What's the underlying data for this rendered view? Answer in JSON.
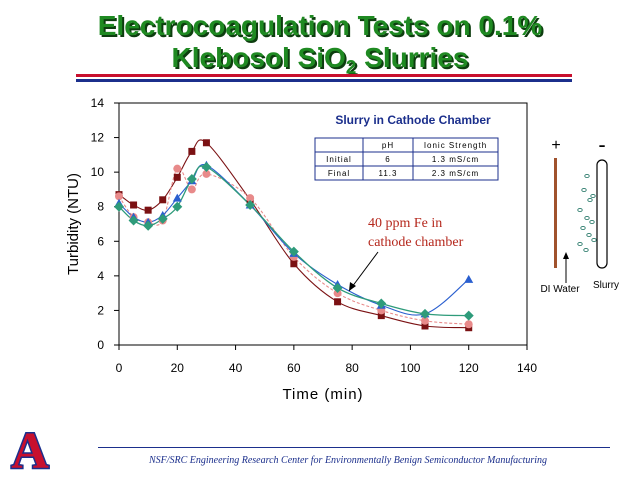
{
  "slide": {
    "title_line1": "Electrocoagulation Tests on 0.1%",
    "title_line2_pre": "Klebosol SiO",
    "title_line2_sub": "2",
    "title_line2_post": " Slurries",
    "footer": "NSF/SRC Engineering Research Center for Environmentally Benign Semiconductor Manufacturing",
    "logo_letter": "A",
    "colors": {
      "title": "#1f8a22",
      "rule_red": "#c8102e",
      "rule_blue": "#1b2f8c",
      "logo_red": "#c8102e",
      "logo_blue": "#1b2f8c"
    }
  },
  "chart_data": {
    "type": "line",
    "xlabel": "Time (min)",
    "ylabel": "Turbidity (NTU)",
    "xlim": [
      0,
      140
    ],
    "ylim": [
      0,
      14
    ],
    "xticks": [
      0,
      20,
      40,
      60,
      80,
      100,
      120,
      140
    ],
    "yticks": [
      0,
      2,
      4,
      6,
      8,
      10,
      12,
      14
    ],
    "grid": false,
    "series": [
      {
        "color": "#7b1113",
        "marker": "square",
        "x": [
          0,
          5,
          10,
          15,
          20,
          25,
          30,
          45,
          60,
          75,
          90,
          105,
          120
        ],
        "y": [
          8.7,
          8.1,
          7.8,
          8.4,
          9.7,
          11.2,
          11.7,
          8.4,
          4.7,
          2.5,
          1.7,
          1.1,
          1.0
        ]
      },
      {
        "color": "#e88a8a",
        "marker": "circle",
        "x": [
          0,
          5,
          10,
          15,
          20,
          25,
          30,
          45,
          60,
          75,
          90,
          105,
          120
        ],
        "y": [
          8.6,
          7.4,
          7.1,
          7.2,
          10.2,
          9.0,
          9.9,
          8.5,
          5.1,
          3.0,
          2.0,
          1.4,
          1.2
        ]
      },
      {
        "color": "#2a5fcf",
        "marker": "triangle",
        "x": [
          0,
          5,
          10,
          15,
          20,
          25,
          30,
          45,
          60,
          75,
          90,
          105,
          120
        ],
        "y": [
          8.2,
          7.4,
          7.1,
          7.5,
          8.5,
          9.5,
          10.4,
          8.1,
          5.3,
          3.5,
          2.3,
          1.8,
          3.8
        ]
      },
      {
        "color": "#2e9b7a",
        "marker": "diamond",
        "x": [
          0,
          5,
          10,
          15,
          20,
          25,
          30,
          45,
          60,
          75,
          90,
          105,
          120
        ],
        "y": [
          8.0,
          7.2,
          6.9,
          7.3,
          8.0,
          9.6,
          10.3,
          8.1,
          5.4,
          3.3,
          2.4,
          1.8,
          1.7
        ]
      }
    ],
    "inset_title": "Slurry in Cathode Chamber",
    "table": {
      "headers": [
        "",
        "pH",
        "Ionic Strength"
      ],
      "rows": [
        [
          "Initial",
          "6",
          "1.3 mS/cm"
        ],
        [
          "Final",
          "11.3",
          "2.3 mS/cm"
        ]
      ]
    },
    "annotation": {
      "line1": "40 ppm Fe in",
      "line2": "cathode chamber",
      "color": "#b5281d",
      "arrow_to": [
        77,
        3.1
      ]
    }
  },
  "schematic": {
    "plus": "+",
    "minus": "-",
    "label_di": "DI Water",
    "label_slurry": "Slurry"
  }
}
